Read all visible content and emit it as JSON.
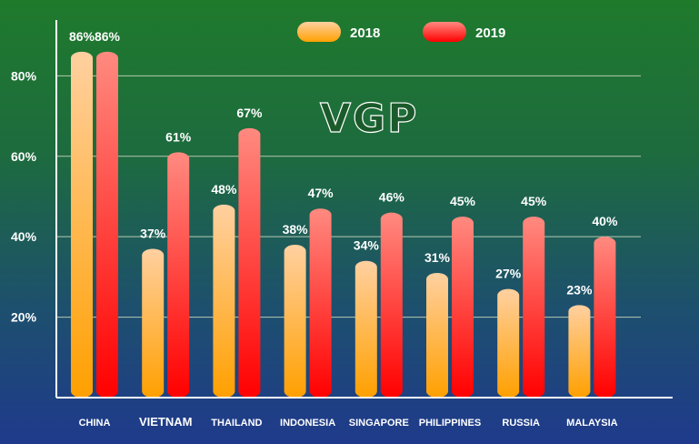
{
  "watermark": "VGP",
  "colors": {
    "series_2018_top": "#ffd0a0",
    "series_2018_bottom": "#ffa000",
    "series_2019_top": "#ff8a80",
    "series_2019_bottom": "#ff0000",
    "gridline": "#b8c8b0",
    "axis": "#ffffff"
  },
  "chart_data": {
    "type": "bar",
    "categories": [
      "CHINA",
      "VIETNAM",
      "THAILAND",
      "INDONESIA",
      "SINGAPORE",
      "PHILIPPINES",
      "RUSSIA",
      "MALAYSIA"
    ],
    "series": [
      {
        "name": "2018",
        "values": [
          86,
          37,
          48,
          38,
          34,
          31,
          27,
          23
        ]
      },
      {
        "name": "2019",
        "values": [
          86,
          61,
          67,
          47,
          46,
          45,
          45,
          40
        ]
      }
    ],
    "value_labels": [
      [
        "86%",
        "37%",
        "48%",
        "38%",
        "34%",
        "31%",
        "27%",
        "23%"
      ],
      [
        "86%",
        "61%",
        "67%",
        "47%",
        "46%",
        "45%",
        "45%",
        "40%"
      ]
    ],
    "y_ticks": [
      20,
      40,
      60,
      80
    ],
    "y_tick_labels": [
      "20%",
      "40%",
      "60%",
      "80%"
    ],
    "ylim": [
      0,
      88
    ],
    "legend_position": "top-center",
    "grid": true
  }
}
